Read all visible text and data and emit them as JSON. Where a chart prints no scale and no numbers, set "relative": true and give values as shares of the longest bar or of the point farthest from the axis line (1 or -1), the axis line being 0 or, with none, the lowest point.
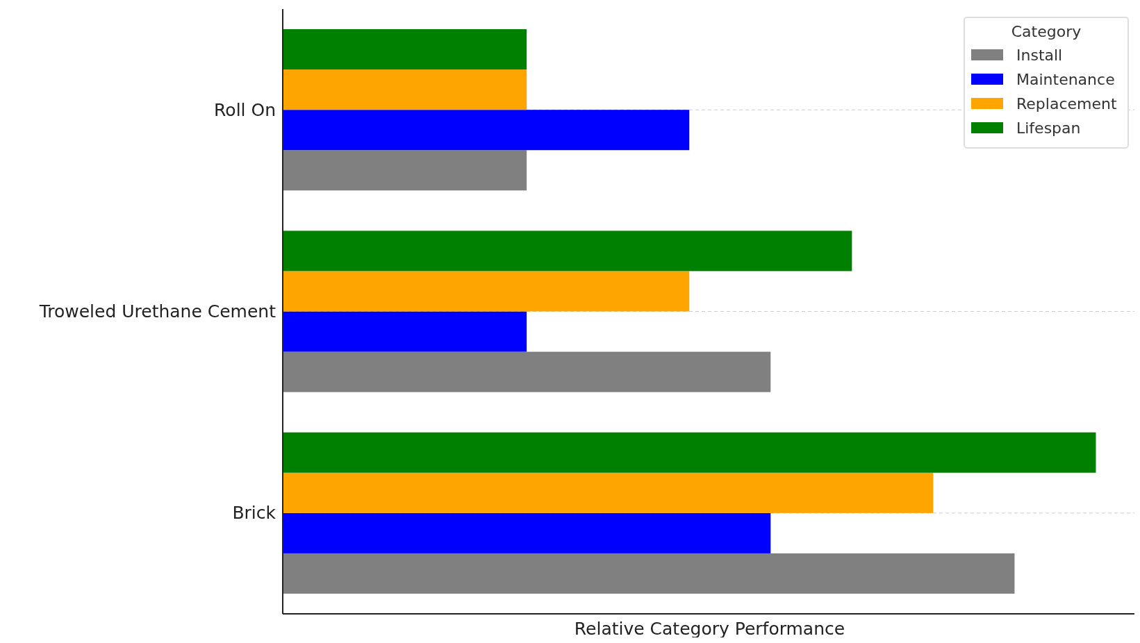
{
  "chart_data": {
    "type": "bar",
    "orientation": "horizontal",
    "relative": true,
    "xlabel": "Relative Category Performance",
    "legend_title": "Category",
    "legend": "top right",
    "grid": "y",
    "categories": [
      "Roll On",
      "Troweled Urethane Cement",
      "Brick"
    ],
    "series": [
      {
        "name": "Install",
        "color": "#808080",
        "values": [
          0.3,
          0.6,
          0.9
        ]
      },
      {
        "name": "Maintenance",
        "color": "#0000ff",
        "values": [
          0.5,
          0.3,
          0.6
        ]
      },
      {
        "name": "Replacement",
        "color": "#ffa500",
        "values": [
          0.3,
          0.5,
          0.8
        ]
      },
      {
        "name": "Lifespan",
        "color": "#008000",
        "values": [
          0.3,
          0.7,
          1.0
        ]
      }
    ]
  }
}
